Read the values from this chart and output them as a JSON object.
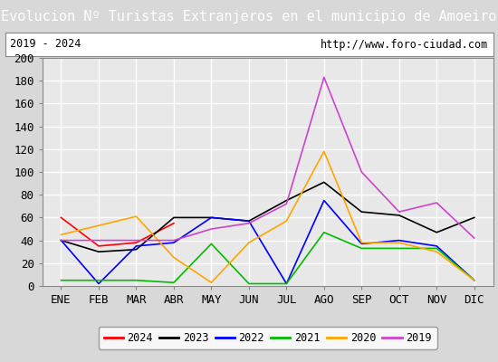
{
  "title": "Evolucion Nº Turistas Extranjeros en el municipio de Amoeiro",
  "title_bg_color": "#4472c4",
  "title_text_color": "white",
  "subtitle_left": "2019 - 2024",
  "subtitle_right": "http://www.foro-ciudad.com",
  "months": [
    "ENE",
    "FEB",
    "MAR",
    "ABR",
    "MAY",
    "JUN",
    "JUL",
    "AGO",
    "SEP",
    "OCT",
    "NOV",
    "DIC"
  ],
  "ylim": [
    0,
    200
  ],
  "yticks": [
    0,
    20,
    40,
    60,
    80,
    100,
    120,
    140,
    160,
    180,
    200
  ],
  "series": {
    "2024": {
      "color": "#ff0000",
      "data": [
        60,
        35,
        38,
        55,
        null,
        null,
        null,
        null,
        null,
        null,
        null,
        null
      ]
    },
    "2023": {
      "color": "#000000",
      "data": [
        40,
        30,
        32,
        60,
        60,
        57,
        75,
        91,
        65,
        62,
        47,
        60
      ]
    },
    "2022": {
      "color": "#0000ff",
      "data": [
        40,
        2,
        35,
        38,
        60,
        57,
        2,
        75,
        37,
        40,
        35,
        5
      ]
    },
    "2021": {
      "color": "#00bb00",
      "data": [
        5,
        5,
        5,
        3,
        37,
        2,
        2,
        47,
        33,
        33,
        33,
        5
      ]
    },
    "2020": {
      "color": "#ffa500",
      "data": [
        45,
        53,
        61,
        25,
        3,
        38,
        57,
        118,
        38,
        38,
        30,
        5
      ]
    },
    "2019": {
      "color": "#cc44cc",
      "data": [
        40,
        40,
        40,
        40,
        50,
        55,
        72,
        183,
        100,
        65,
        73,
        42
      ]
    }
  },
  "legend_order": [
    "2024",
    "2023",
    "2022",
    "2021",
    "2020",
    "2019"
  ],
  "outer_bg_color": "#d8d8d8",
  "plot_bg_color": "#e8e8e8",
  "subtitle_bg_color": "#ffffff",
  "border_color": "#888888",
  "grid_color": "white",
  "tick_label_size": 9,
  "title_fontsize": 11
}
